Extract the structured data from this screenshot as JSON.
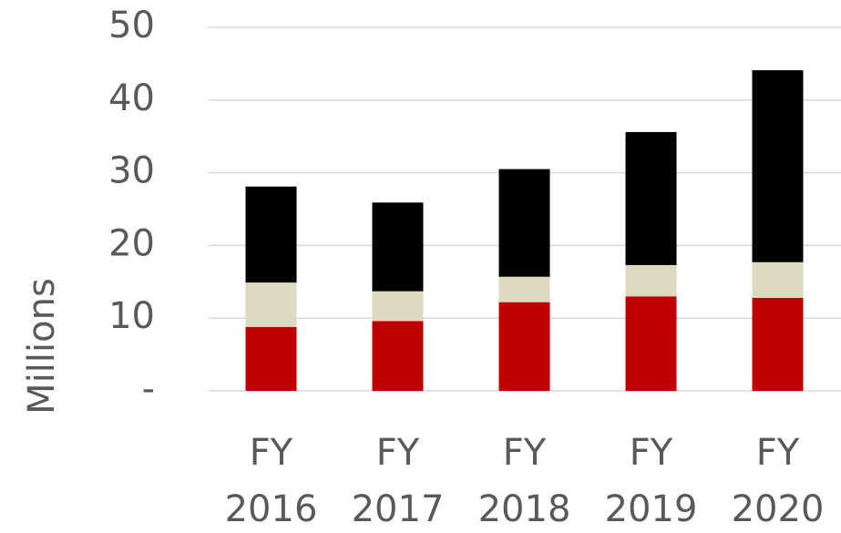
{
  "chart_data": {
    "type": "stacked_bar",
    "y_label": "Millions",
    "categories": [
      "FY 2016",
      "FY 2017",
      "FY 2018",
      "FY 2019",
      "FY 2020"
    ],
    "series": [
      {
        "color": "#c00000",
        "values": [
          8.8,
          9.6,
          12.2,
          13.0,
          12.8
        ]
      },
      {
        "color": "#ddd9c3",
        "values": [
          6.1,
          4.1,
          3.5,
          4.3,
          4.9
        ]
      },
      {
        "color": "#000000",
        "values": [
          13.2,
          12.2,
          14.8,
          18.3,
          26.4
        ]
      }
    ],
    "ylim": [
      0,
      50
    ],
    "yticks": [
      {
        "value": 0,
        "label": "-"
      },
      10,
      20,
      30,
      40,
      50
    ],
    "grid": true
  }
}
